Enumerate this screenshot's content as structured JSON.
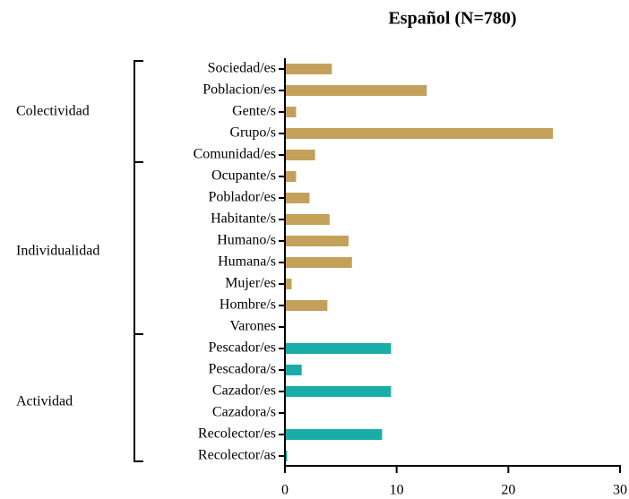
{
  "chart_data": {
    "type": "bar",
    "orientation": "horizontal",
    "title": "Español (N=780)",
    "groups": [
      {
        "label": "Colectividad",
        "color": "#c4a15a",
        "categories": [
          "Sociedad/es",
          "Poblacion/es",
          "Gente/s",
          "Grupo/s",
          "Comunidad/es"
        ],
        "values": [
          4.2,
          12.7,
          1.0,
          24.0,
          2.7
        ]
      },
      {
        "label": "Individualidad",
        "color": "#c4a15a",
        "categories": [
          "Ocupante/s",
          "Poblador/es",
          "Habitante/s",
          "Humano/s",
          "Humana/s",
          "Mujer/es",
          "Hombre/s",
          "Varones"
        ],
        "values": [
          1.0,
          2.2,
          4.0,
          5.7,
          6.0,
          0.6,
          3.8,
          0
        ]
      },
      {
        "label": "Actividad",
        "color": "#1aada8",
        "categories": [
          "Pescador/es",
          "Pescadora/s",
          "Cazador/es",
          "Cazadora/s",
          "Recolector/es",
          "Recolector/as"
        ],
        "values": [
          9.5,
          1.5,
          9.5,
          0,
          8.7,
          0.2
        ]
      }
    ],
    "xlim": [
      0,
      30
    ],
    "xticks": [
      0,
      10,
      20,
      30
    ]
  }
}
